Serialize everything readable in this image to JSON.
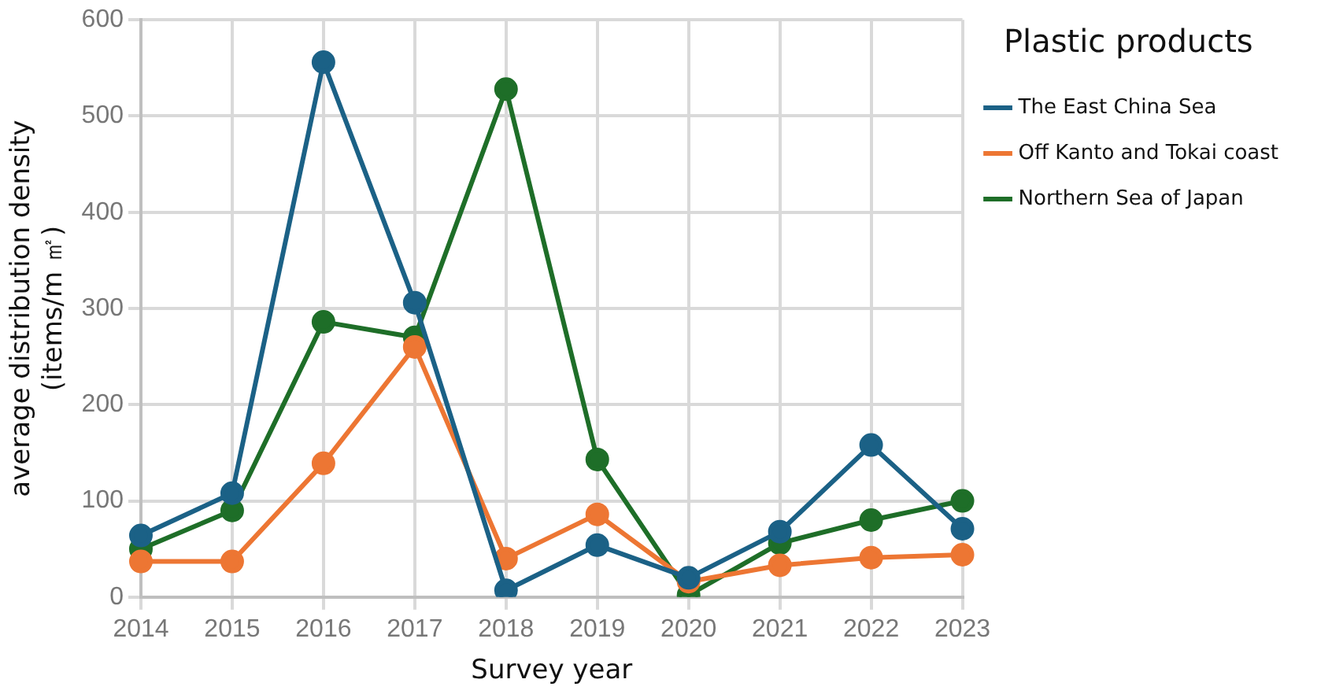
{
  "chart_data": {
    "type": "line",
    "xlabel": "Survey year",
    "ylabel": "average distribution density\n(items/m ㎡)",
    "legend_title": "Plastic products",
    "categories": [
      "2014",
      "2015",
      "2016",
      "2017",
      "2018",
      "2019",
      "2020",
      "2021",
      "2022",
      "2023"
    ],
    "series": [
      {
        "name": "The East China Sea",
        "color": "#1b6186",
        "values": [
          64,
          108,
          556,
          306,
          7,
          54,
          20,
          68,
          158,
          71
        ]
      },
      {
        "name": "Off Kanto and Tokai coast",
        "color": "#ed7633",
        "values": [
          37,
          37,
          139,
          260,
          40,
          86,
          16,
          33,
          41,
          44
        ]
      },
      {
        "name": "Northern Sea of Japan",
        "color": "#1e6e28",
        "values": [
          50,
          90,
          286,
          270,
          528,
          143,
          2,
          56,
          80,
          100
        ]
      }
    ],
    "ylim": [
      0,
      600
    ],
    "yticks": [
      0,
      100,
      200,
      300,
      400,
      500,
      600
    ],
    "grid": true,
    "legend": "top right",
    "marker": "circle",
    "line_style": "solid"
  }
}
